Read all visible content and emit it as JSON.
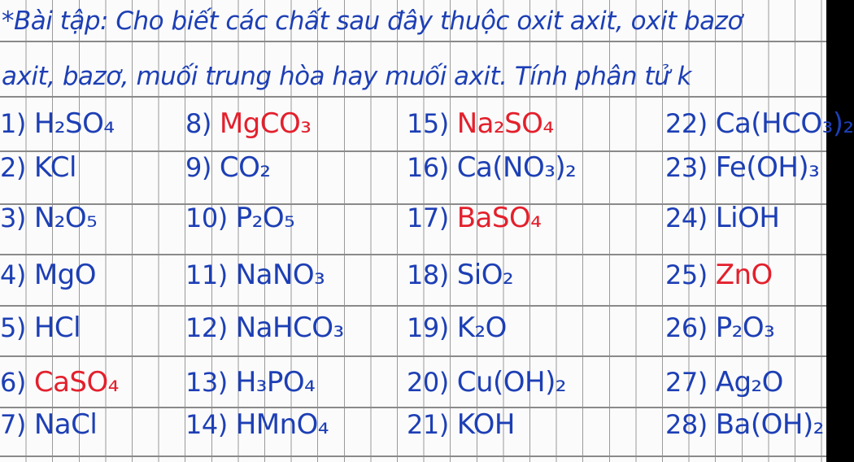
{
  "header": {
    "line1": "*Bài tập: Cho biết các chất sau đây thuộc oxit axit, oxit bazơ",
    "line2": "axit, bazơ, muối trung hòa hay muối axit. Tính phân tử k"
  },
  "colors": {
    "ink": "#1d3fb5",
    "highlight": "#e3202c"
  },
  "items": [
    {
      "num": "1)",
      "formula": "H₂SO₄",
      "red": false
    },
    {
      "num": "2)",
      "formula": "KCl",
      "red": false
    },
    {
      "num": "3)",
      "formula": "N₂O₅",
      "red": false
    },
    {
      "num": "4)",
      "formula": "MgO",
      "red": false
    },
    {
      "num": "5)",
      "formula": "HCl",
      "red": false
    },
    {
      "num": "6)",
      "formula": "CaSO₄",
      "red": true
    },
    {
      "num": "7)",
      "formula": "NaCl",
      "red": false
    },
    {
      "num": "8)",
      "formula": "MgCO₃",
      "red": true
    },
    {
      "num": "9)",
      "formula": "CO₂",
      "red": false
    },
    {
      "num": "10)",
      "formula": "P₂O₅",
      "red": false
    },
    {
      "num": "11)",
      "formula": "NaNO₃",
      "red": false
    },
    {
      "num": "12)",
      "formula": "NaHCO₃",
      "red": false
    },
    {
      "num": "13)",
      "formula": "H₃PO₄",
      "red": false
    },
    {
      "num": "14)",
      "formula": "HMnO₄",
      "red": false
    },
    {
      "num": "15)",
      "formula": "Na₂SO₄",
      "red": true
    },
    {
      "num": "16)",
      "formula": "Ca(NO₃)₂",
      "red": false
    },
    {
      "num": "17)",
      "formula": "BaSO₄",
      "red": true
    },
    {
      "num": "18)",
      "formula": "SiO₂",
      "red": false
    },
    {
      "num": "19)",
      "formula": "K₂O",
      "red": false
    },
    {
      "num": "20)",
      "formula": "Cu(OH)₂",
      "red": false
    },
    {
      "num": "21)",
      "formula": "KOH",
      "red": false
    },
    {
      "num": "22)",
      "formula": "Ca(HCO₃)₂",
      "red": false
    },
    {
      "num": "23)",
      "formula": "Fe(OH)₃",
      "red": false
    },
    {
      "num": "24)",
      "formula": "LiOH",
      "red": false
    },
    {
      "num": "25)",
      "formula": "ZnO",
      "red": true
    },
    {
      "num": "26)",
      "formula": "P₂O₃",
      "red": false
    },
    {
      "num": "27)",
      "formula": "Ag₂O",
      "red": false
    },
    {
      "num": "28)",
      "formula": "Ba(OH)₂",
      "red": false
    }
  ]
}
